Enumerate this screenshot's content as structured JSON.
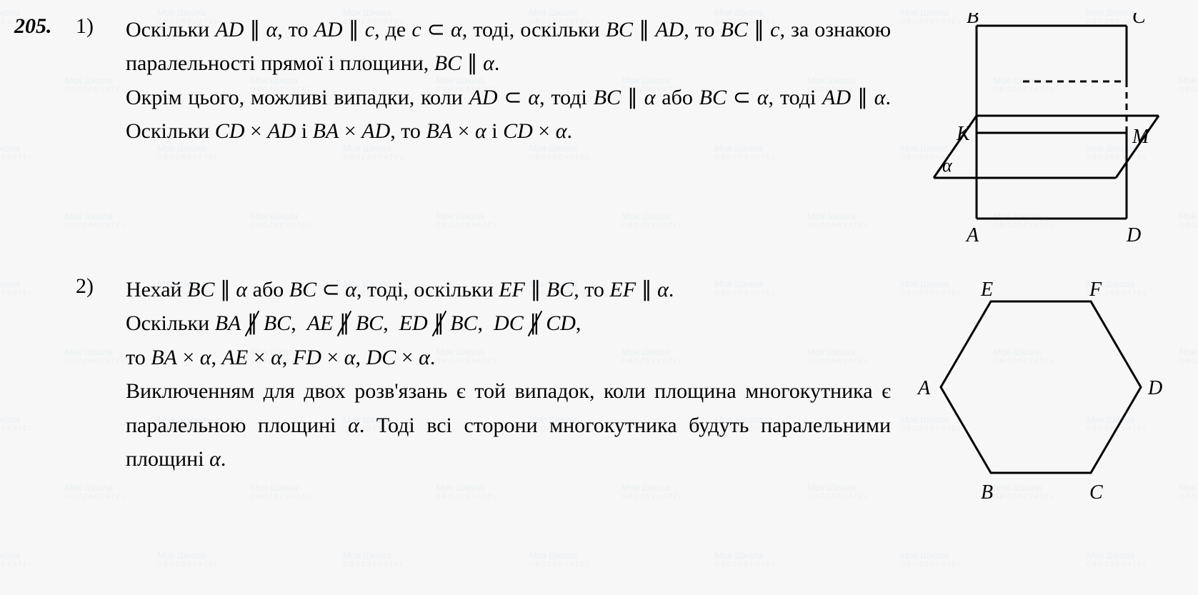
{
  "problem_number": "205.",
  "watermark": {
    "line1": "Моя Школа",
    "line2": "OBOZREVATEL"
  },
  "parts": [
    {
      "number": "1)",
      "text_html": "Оскільки <span class=\"math\">AD</span> ∥ <span class=\"math\">α</span>, то <span class=\"math\">AD</span> ∥ <span class=\"math\">c</span>, де <span class=\"math\">c</span> ⊂ <span class=\"math\">α</span>, тоді, оскільки <span class=\"math\">BC</span> ∥ <span class=\"math\">AD</span>, то <span class=\"math\">BC</span> ∥ <span class=\"math\">c</span>, за ознакою паралельності прямої і площини, <span class=\"math\">BC</span> ∥ <span class=\"math\">α</span>.<br>Окрім цього, можливі випадки, коли <span class=\"math\">AD</span> ⊂ <span class=\"math\">α</span>, тоді <span class=\"math\">BC</span> ∥ <span class=\"math\">α</span> або <span class=\"math\">BC</span> ⊂ <span class=\"math\">α</span>, тоді <span class=\"math\">AD</span> ∥ <span class=\"math\">α</span>. Оскільки <span class=\"math\">CD</span> × <span class=\"math\">AD</span> і <span class=\"math\">BA</span> × <span class=\"math\">AD</span>, то <span class=\"math\">BA</span> × <span class=\"math\">α</span> і <span class=\"math\">CD</span> × <span class=\"math\">α</span>.",
      "figure": {
        "type": "square-with-plane",
        "labels": {
          "A": "A",
          "B": "B",
          "C": "C",
          "D": "D",
          "K": "K",
          "M": "M",
          "alpha": "α"
        },
        "stroke": "#000000",
        "stroke_width": 3,
        "dash": "8,6",
        "font_size": 28,
        "font_style": "italic"
      }
    },
    {
      "number": "2)",
      "text_html": "Нехай <span class=\"math\">BC</span> ∥ <span class=\"math\">α</span> або <span class=\"math\">BC</span> ⊂ <span class=\"math\">α</span>, тоді, оскільки <span class=\"math\">EF</span> ∥ <span class=\"math\">BC</span>, то <span class=\"math\">EF</span> ∥ <span class=\"math\">α</span>.<br>Оскільки <span class=\"math\">BA</span> <span class=\"npar\"></span> <span class=\"math\">BC</span>, &nbsp;<span class=\"math\">AE</span> <span class=\"npar\"></span> <span class=\"math\">BC</span>, &nbsp;<span class=\"math\">ED</span> <span class=\"npar\"></span> <span class=\"math\">BC</span>, &nbsp;<span class=\"math\">DC</span> <span class=\"npar\"></span> <span class=\"math\">CD</span>,<br>то <span class=\"math\">BA</span> × <span class=\"math\">α</span>, <span class=\"math\">AE</span> × <span class=\"math\">α</span>, <span class=\"math\">FD</span> × <span class=\"math\">α</span>, <span class=\"math\">DC</span> × <span class=\"math\">α</span>.<br>Виключенням для двох розв'язань є той випадок, коли площина многокутника є паралельною площині <span class=\"math\">α</span>. Тоді всі сторони многокутника будуть паралельними площині <span class=\"math\">α</span>.",
      "figure": {
        "type": "hexagon",
        "labels": {
          "A": "A",
          "B": "B",
          "C": "C",
          "D": "D",
          "E": "E",
          "F": "F"
        },
        "stroke": "#000000",
        "stroke_width": 3,
        "font_size": 28,
        "font_style": "italic"
      }
    }
  ]
}
